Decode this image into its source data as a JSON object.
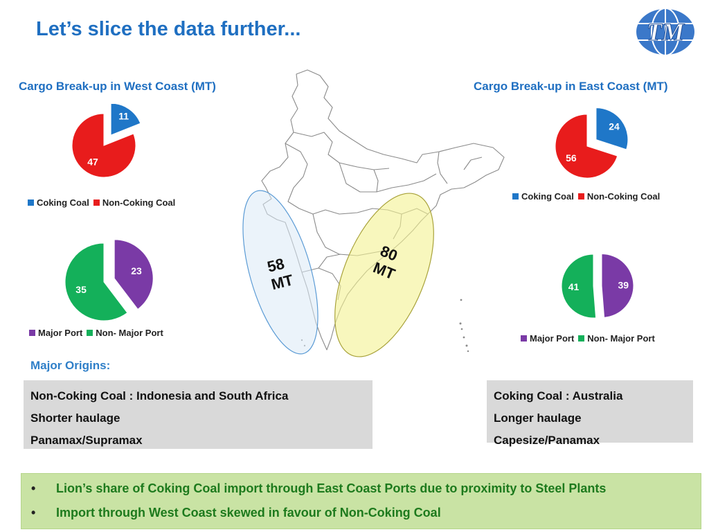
{
  "title": "Let’s slice the data further...",
  "logo": {
    "text": "TM",
    "icon": "globe-logo-icon"
  },
  "colors": {
    "coking": "#1f77c8",
    "non_coking": "#e81c1c",
    "major_port": "#7a3aa6",
    "non_major_port": "#14b05a",
    "title": "#1f6fc1",
    "green_text": "#1d7a1d"
  },
  "west": {
    "title": "Cargo Break-up in West Coast (MT)",
    "cargo_legend": [
      "Coking Coal",
      "Non-Coking Coal"
    ],
    "port_legend": [
      "Major Port",
      "Non- Major Port"
    ]
  },
  "east": {
    "title": "Cargo Break-up in East Coast (MT)",
    "cargo_legend": [
      "Coking Coal",
      "Non-Coking Coal"
    ],
    "port_legend": [
      "Major Port",
      "Non- Major Port"
    ]
  },
  "map": {
    "west_total_line1": "58",
    "west_total_line2": "MT",
    "east_total_line1": "80",
    "east_total_line2": "MT"
  },
  "chart_data": [
    {
      "type": "pie",
      "title": "Cargo Break-up in West Coast (MT)",
      "categories": [
        "Coking Coal",
        "Non-Coking Coal"
      ],
      "values": [
        11,
        47
      ],
      "colors": [
        "#1f77c8",
        "#e81c1c"
      ],
      "exploded": "Coking Coal",
      "legend": "bottom"
    },
    {
      "type": "pie",
      "categories": [
        "Major Port",
        "Non- Major Port"
      ],
      "values": [
        23,
        35
      ],
      "colors": [
        "#7a3aa6",
        "#14b05a"
      ],
      "exploded": "Major Port",
      "legend": "bottom"
    },
    {
      "type": "pie",
      "title": "Cargo Break-up in East Coast (MT)",
      "categories": [
        "Coking Coal",
        "Non-Coking Coal"
      ],
      "values": [
        24,
        56
      ],
      "colors": [
        "#1f77c8",
        "#e81c1c"
      ],
      "exploded": "Coking Coal",
      "legend": "bottom"
    },
    {
      "type": "pie",
      "categories": [
        "Major Port",
        "Non- Major Port"
      ],
      "values": [
        39,
        41
      ],
      "colors": [
        "#7a3aa6",
        "#14b05a"
      ],
      "exploded": "Major Port",
      "legend": "bottom"
    }
  ],
  "origins": {
    "heading": "Major Origins:",
    "left_box": [
      "Non-Coking Coal : Indonesia and South Africa",
      "Shorter haulage",
      "Panamax/Supramax"
    ],
    "right_box": [
      "Coking Coal : Australia",
      "Longer haulage",
      "Capesize/Panamax"
    ]
  },
  "bullets": [
    "Lion’s share of Coking Coal import through East Coast Ports due to proximity to Steel Plants",
    "Import through West Coast skewed in favour of Non-Coking Coal"
  ]
}
